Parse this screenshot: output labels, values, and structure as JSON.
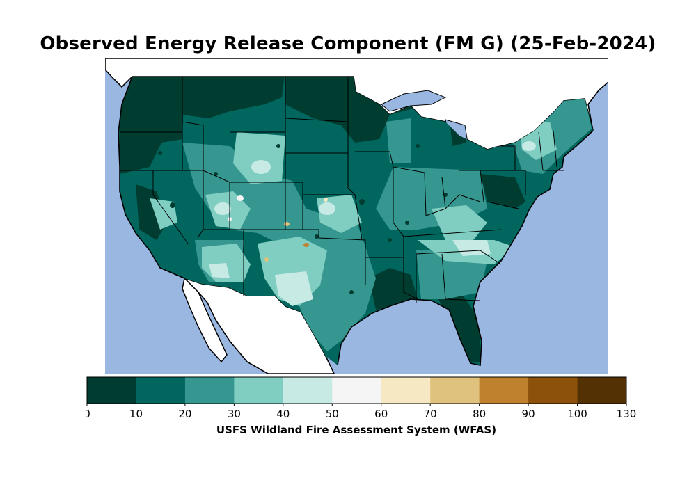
{
  "title": "Observed Energy Release Component (FM G) (25-Feb-2024)",
  "colorbar": {
    "label": "USFS Wildland Fire Assessment System (WFAS)",
    "ticks": [
      "0",
      "10",
      "20",
      "30",
      "40",
      "50",
      "60",
      "70",
      "80",
      "90",
      "100",
      "130"
    ],
    "bins": [
      {
        "from": 0,
        "to": 10,
        "color": "#003c30"
      },
      {
        "from": 10,
        "to": 20,
        "color": "#01665e"
      },
      {
        "from": 20,
        "to": 30,
        "color": "#35978f"
      },
      {
        "from": 30,
        "to": 40,
        "color": "#80cdc1"
      },
      {
        "from": 40,
        "to": 50,
        "color": "#c7eae5"
      },
      {
        "from": 50,
        "to": 60,
        "color": "#f5f5f5"
      },
      {
        "from": 60,
        "to": 70,
        "color": "#f6e8c3"
      },
      {
        "from": 70,
        "to": 80,
        "color": "#dfc27d"
      },
      {
        "from": 80,
        "to": 90,
        "color": "#bf812d"
      },
      {
        "from": 90,
        "to": 100,
        "color": "#8c510a"
      },
      {
        "from": 100,
        "to": 130,
        "color": "#543005"
      }
    ]
  },
  "map": {
    "ocean_color": "#9ab7e2",
    "mexico_color": "#ffffff",
    "border_color": "#000000"
  }
}
